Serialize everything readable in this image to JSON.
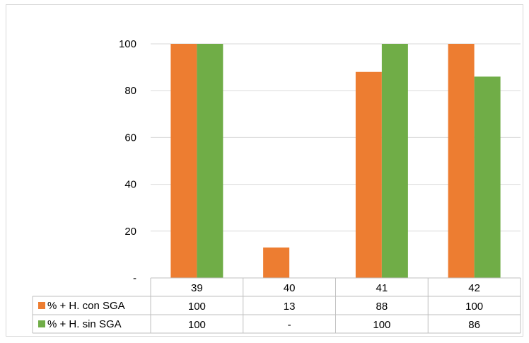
{
  "chart_data": {
    "type": "bar",
    "categories": [
      "39",
      "40",
      "41",
      "42"
    ],
    "series": [
      {
        "name": "% + H. con SGA",
        "color": "#ED7D31",
        "values": [
          100,
          13,
          88,
          100
        ],
        "table_values": [
          "100",
          "13",
          "88",
          "100"
        ]
      },
      {
        "name": "% + H. sin SGA",
        "color": "#70AD47",
        "values": [
          100,
          0,
          100,
          86
        ],
        "table_values": [
          "100",
          "-",
          "100",
          "86"
        ]
      }
    ],
    "yticks": [
      "-",
      "20",
      "40",
      "60",
      "80",
      "100"
    ],
    "ylim": [
      0,
      100
    ],
    "grid": true,
    "legend": "data-table"
  }
}
